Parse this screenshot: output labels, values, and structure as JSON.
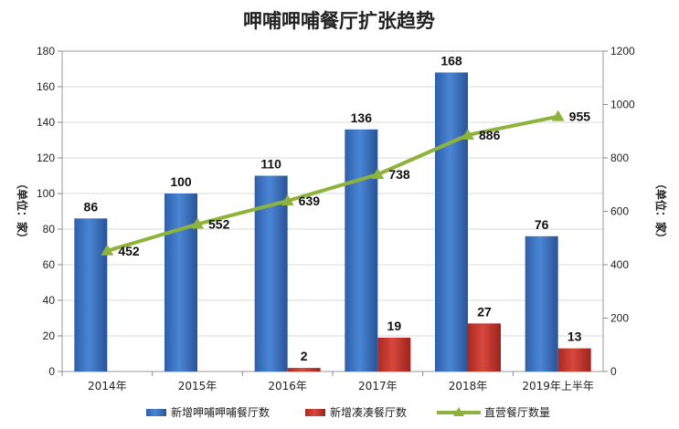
{
  "chart_data": {
    "type": "bar",
    "title": "呷哺呷哺餐厅扩张趋势",
    "categories": [
      "2014年",
      "2015年",
      "2016年",
      "2017年",
      "2018年",
      "2019年上半年"
    ],
    "series": [
      {
        "name": "新增呷哺呷哺餐厅数",
        "type": "bar",
        "axis": "left",
        "color": "#3a6ebf",
        "values": [
          86,
          100,
          110,
          136,
          168,
          76
        ]
      },
      {
        "name": "新增凑凑餐厅数",
        "type": "bar",
        "axis": "left",
        "color": "#c0392b",
        "values": [
          null,
          null,
          2,
          19,
          27,
          13
        ]
      },
      {
        "name": "直营餐厅数量",
        "type": "line",
        "axis": "right",
        "color": "#8db33c",
        "values": [
          452,
          552,
          639,
          738,
          886,
          955
        ]
      }
    ],
    "ylim_left": [
      0,
      180
    ],
    "yticks_left": [
      0,
      20,
      40,
      60,
      80,
      100,
      120,
      140,
      160,
      180
    ],
    "ylim_right": [
      0,
      1200
    ],
    "yticks_right": [
      0,
      200,
      400,
      600,
      800,
      1000,
      1200
    ],
    "ylabel_left": "（单位：家）",
    "ylabel_right": "（单位：家）",
    "legend_position": "bottom",
    "grid": true
  }
}
